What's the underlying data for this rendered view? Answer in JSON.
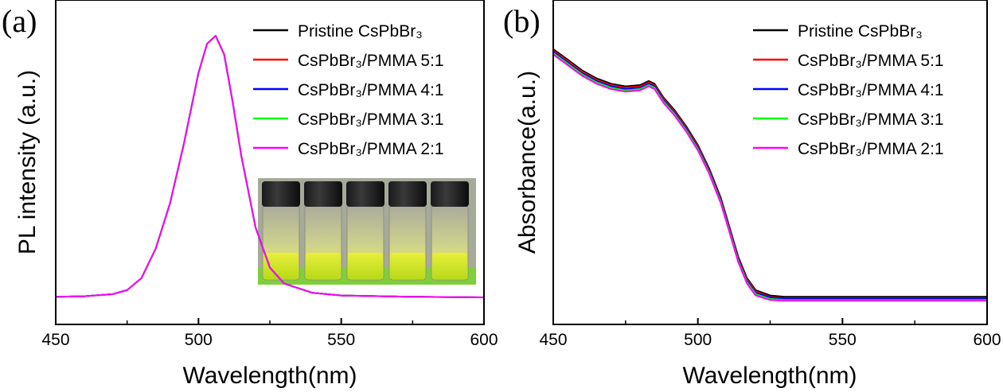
{
  "chart_data": [
    {
      "panel": "(a)",
      "type": "line",
      "xlabel": "Wavelength(nm)",
      "ylabel": "PL intensity (a.u.)",
      "xlim": [
        450,
        600
      ],
      "ylim": [
        0,
        1.1
      ],
      "xticks": [
        "450",
        "500",
        "550",
        "600"
      ],
      "x": [
        450,
        460,
        470,
        475,
        480,
        485,
        490,
        495,
        500,
        503,
        506,
        509,
        512,
        515,
        520,
        525,
        530,
        540,
        550,
        575,
        600
      ],
      "series": [
        {
          "name": "Pristine CsPbBr₃",
          "color": "#000000",
          "values": [
            0.02,
            0.022,
            0.03,
            0.045,
            0.09,
            0.2,
            0.37,
            0.6,
            0.86,
            0.97,
            1.0,
            0.93,
            0.75,
            0.55,
            0.28,
            0.13,
            0.07,
            0.035,
            0.025,
            0.02,
            0.018
          ]
        },
        {
          "name": "CsPbBr₃/PMMA 5:1",
          "color": "#ff0000",
          "values": [
            0.02,
            0.022,
            0.03,
            0.045,
            0.09,
            0.2,
            0.37,
            0.6,
            0.86,
            0.97,
            1.0,
            0.93,
            0.75,
            0.55,
            0.28,
            0.13,
            0.07,
            0.035,
            0.025,
            0.02,
            0.018
          ]
        },
        {
          "name": "CsPbBr₃/PMMA 4:1",
          "color": "#0000ff",
          "values": [
            0.02,
            0.022,
            0.03,
            0.045,
            0.09,
            0.2,
            0.37,
            0.6,
            0.86,
            0.97,
            1.0,
            0.93,
            0.75,
            0.55,
            0.28,
            0.13,
            0.07,
            0.035,
            0.025,
            0.02,
            0.018
          ]
        },
        {
          "name": "CsPbBr₃/PMMA 3:1",
          "color": "#00ff00",
          "values": [
            0.02,
            0.022,
            0.03,
            0.045,
            0.09,
            0.2,
            0.37,
            0.6,
            0.86,
            0.97,
            1.0,
            0.93,
            0.75,
            0.55,
            0.28,
            0.13,
            0.07,
            0.035,
            0.025,
            0.02,
            0.018
          ]
        },
        {
          "name": "CsPbBr₃/PMMA 2:1",
          "color": "#ff00ff",
          "values": [
            0.02,
            0.022,
            0.03,
            0.045,
            0.09,
            0.2,
            0.37,
            0.6,
            0.86,
            0.97,
            1.0,
            0.93,
            0.75,
            0.55,
            0.28,
            0.13,
            0.07,
            0.035,
            0.025,
            0.02,
            0.018
          ]
        }
      ],
      "inset": {
        "description": "photo of five vials",
        "vial_count": 5
      }
    },
    {
      "panel": "(b)",
      "type": "line",
      "xlabel": "Wavelength(nm)",
      "ylabel": "Absorbance(a.u.)",
      "xlim": [
        450,
        600
      ],
      "ylim": [
        0,
        1.1
      ],
      "xticks": [
        "450",
        "500",
        "550",
        "600"
      ],
      "x": [
        450,
        455,
        460,
        465,
        470,
        475,
        480,
        483,
        485,
        488,
        492,
        496,
        500,
        504,
        508,
        511,
        514,
        517,
        520,
        525,
        530,
        550,
        575,
        600
      ],
      "series": [
        {
          "name": "Pristine CsPbBr₃",
          "color": "#000000",
          "values": [
            0.95,
            0.91,
            0.87,
            0.84,
            0.82,
            0.81,
            0.815,
            0.83,
            0.82,
            0.77,
            0.72,
            0.66,
            0.59,
            0.5,
            0.39,
            0.28,
            0.17,
            0.09,
            0.045,
            0.025,
            0.02,
            0.02,
            0.02,
            0.02
          ]
        },
        {
          "name": "CsPbBr₃/PMMA 5:1",
          "color": "#ff0000",
          "values": [
            0.945,
            0.905,
            0.865,
            0.835,
            0.815,
            0.805,
            0.81,
            0.825,
            0.815,
            0.765,
            0.715,
            0.655,
            0.585,
            0.495,
            0.385,
            0.275,
            0.165,
            0.085,
            0.04,
            0.02,
            0.015,
            0.015,
            0.015,
            0.015
          ]
        },
        {
          "name": "CsPbBr₃/PMMA 4:1",
          "color": "#0000ff",
          "values": [
            0.94,
            0.9,
            0.86,
            0.83,
            0.81,
            0.8,
            0.805,
            0.82,
            0.81,
            0.76,
            0.71,
            0.65,
            0.58,
            0.49,
            0.38,
            0.27,
            0.16,
            0.08,
            0.035,
            0.018,
            0.013,
            0.013,
            0.013,
            0.013
          ]
        },
        {
          "name": "CsPbBr₃/PMMA 3:1",
          "color": "#00ff00",
          "values": [
            0.935,
            0.895,
            0.855,
            0.825,
            0.805,
            0.795,
            0.8,
            0.815,
            0.805,
            0.755,
            0.705,
            0.645,
            0.575,
            0.485,
            0.375,
            0.265,
            0.155,
            0.075,
            0.03,
            0.012,
            0.008,
            0.008,
            0.008,
            0.008
          ]
        },
        {
          "name": "CsPbBr₃/PMMA 2:1",
          "color": "#ff00ff",
          "values": [
            0.93,
            0.89,
            0.85,
            0.82,
            0.8,
            0.79,
            0.795,
            0.81,
            0.8,
            0.75,
            0.7,
            0.64,
            0.57,
            0.48,
            0.37,
            0.26,
            0.15,
            0.07,
            0.025,
            0.008,
            0.005,
            0.005,
            0.005,
            0.005
          ]
        }
      ]
    }
  ]
}
